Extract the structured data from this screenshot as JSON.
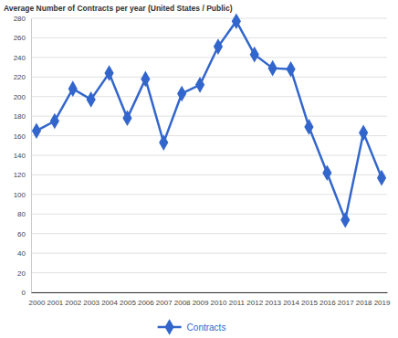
{
  "chart_data": {
    "type": "line",
    "title": "Average Number of Contracts per year (United States / Public)",
    "categories": [
      "2000",
      "2001",
      "2002",
      "2003",
      "2004",
      "2005",
      "2006",
      "2007",
      "2008",
      "2009",
      "2010",
      "2011",
      "2012",
      "2013",
      "2014",
      "2015",
      "2016",
      "2017",
      "2018",
      "2019"
    ],
    "series": [
      {
        "name": "Contracts",
        "color": "#3366cc",
        "marker": "diamond",
        "values": [
          165,
          175,
          208,
          197,
          224,
          178,
          218,
          153,
          203,
          212,
          251,
          277,
          243,
          229,
          228,
          169,
          122,
          74,
          163,
          117
        ]
      }
    ],
    "ylim": [
      0,
      280
    ],
    "yticks": [
      0,
      20,
      40,
      60,
      80,
      100,
      120,
      140,
      160,
      180,
      200,
      220,
      240,
      260,
      280
    ],
    "grid": true,
    "legend": "bottom"
  }
}
